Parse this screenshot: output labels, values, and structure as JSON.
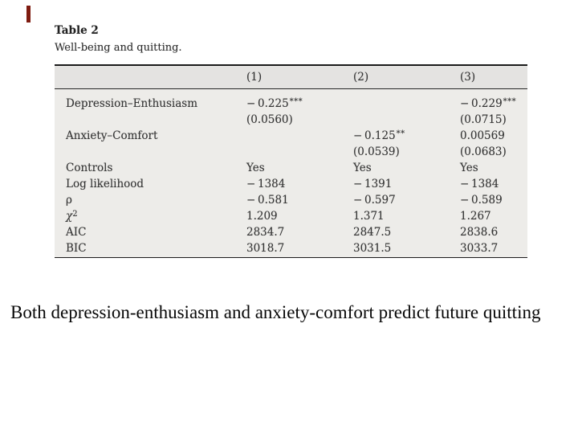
{
  "accent": {
    "bar_color": "#7e1b10"
  },
  "table": {
    "title": "Table 2",
    "subtitle": "Well-being and quitting.",
    "columns": [
      "(1)",
      "(2)",
      "(3)"
    ],
    "rows": {
      "depression": {
        "label": "Depression–Enthusiasm",
        "m1": "− 0.225",
        "m1_stars": "***",
        "m1_se": "(0.0560)",
        "m3": "− 0.229",
        "m3_stars": "***",
        "m3_se": "(0.0715)"
      },
      "anxiety": {
        "label": "Anxiety–Comfort",
        "m2": "− 0.125",
        "m2_stars": "**",
        "m2_se": "(0.0539)",
        "m3": "0.00569",
        "m3_se": "(0.0683)"
      },
      "controls": {
        "label": "Controls",
        "m1": "Yes",
        "m2": "Yes",
        "m3": "Yes"
      },
      "loglik": {
        "label": "Log likelihood",
        "m1": "− 1384",
        "m2": "− 1391",
        "m3": "− 1384"
      },
      "rho": {
        "label": "ρ",
        "m1": "− 0.581",
        "m2": "− 0.597",
        "m3": "− 0.589"
      },
      "chi2": {
        "label_base": "χ",
        "label_sup": "2",
        "m1": "1.209",
        "m2": "1.371",
        "m3": "1.267"
      },
      "aic": {
        "label": "AIC",
        "m1": "2834.7",
        "m2": "2847.5",
        "m3": "2838.6"
      },
      "bic": {
        "label": "BIC",
        "m1": "3018.7",
        "m2": "3031.5",
        "m3": "3033.7"
      }
    }
  },
  "caption": {
    "text": "Both depression-enthusiasm and anxiety-comfort predict future quitting"
  }
}
